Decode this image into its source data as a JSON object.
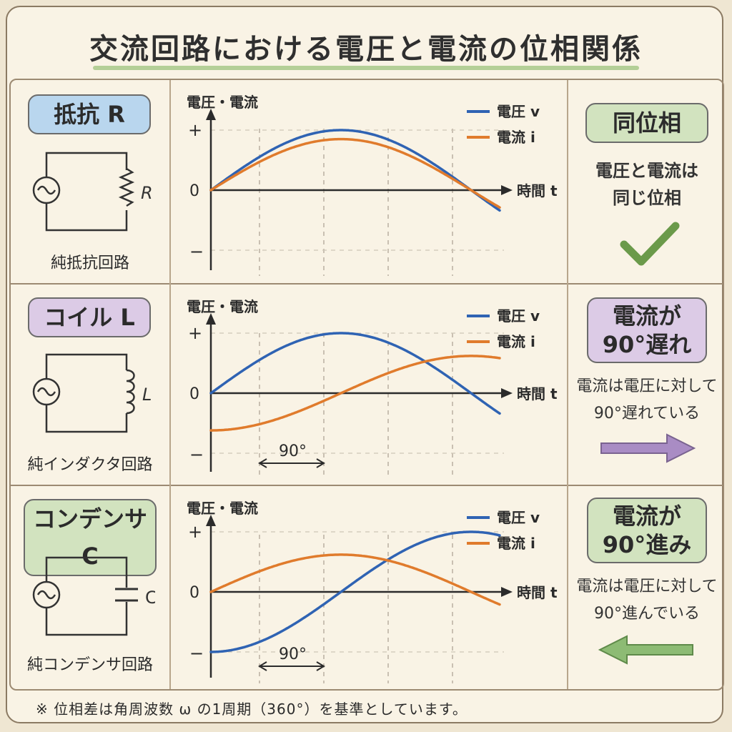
{
  "title": "交流回路における電圧と電流の位相関係",
  "footer_note": "※ 位相差は角周波数 ω の1周期（360°）を基準としています。",
  "axis": {
    "y_label": "電圧・電流",
    "x_label": "時間 t",
    "plus": "+",
    "zero": "0",
    "minus": "−"
  },
  "legend": {
    "voltage": "電圧 v",
    "current": "電流 i"
  },
  "colors": {
    "voltage": "#2f63b3",
    "current": "#e07b2c",
    "resistor": "#b9d6ee",
    "coil": "#dccbe6",
    "capacitor": "#d2e3bf"
  },
  "rows": [
    {
      "component_label": "抵抗 R",
      "circuit_symbol": "R",
      "circuit_caption": "純抵抗回路",
      "result_label": "同位相",
      "result_desc": [
        "電圧と電流は",
        "同じ位相"
      ],
      "icon": "checkmark-icon",
      "phase_label": ""
    },
    {
      "component_label": "コイル L",
      "circuit_symbol": "L",
      "circuit_caption": "純インダクタ回路",
      "result_label": [
        "電流が",
        "90°遅れ"
      ],
      "result_desc": [
        "電流は電圧に対して",
        "90°遅れている"
      ],
      "icon": "arrow-right-icon",
      "phase_label": "90°"
    },
    {
      "component_label": "コンデンサ C",
      "circuit_symbol": "C",
      "circuit_caption": "純コンデンサ回路",
      "result_label": [
        "電流が",
        "90°進み"
      ],
      "result_desc": [
        "電流は電圧に対して",
        "90°進んでいる"
      ],
      "icon": "arrow-left-icon",
      "phase_label": "90°"
    }
  ],
  "chart_data": [
    {
      "type": "line",
      "panel": "resistor",
      "x_unit": "degrees",
      "series": [
        {
          "name": "電圧 v",
          "amplitude": 1.0,
          "phase_deg": 0
        },
        {
          "name": "電流 i",
          "amplitude": 0.85,
          "phase_deg": 0
        }
      ]
    },
    {
      "type": "line",
      "panel": "coil",
      "x_unit": "degrees",
      "series": [
        {
          "name": "電圧 v",
          "amplitude": 1.0,
          "phase_deg": 0
        },
        {
          "name": "電流 i",
          "amplitude": 0.62,
          "phase_deg": -90
        }
      ]
    },
    {
      "type": "line",
      "panel": "capacitor",
      "x_unit": "degrees",
      "series": [
        {
          "name": "電圧 v",
          "amplitude": 1.0,
          "phase_deg": -90
        },
        {
          "name": "電流 i",
          "amplitude": 0.62,
          "phase_deg": 0
        }
      ]
    }
  ]
}
